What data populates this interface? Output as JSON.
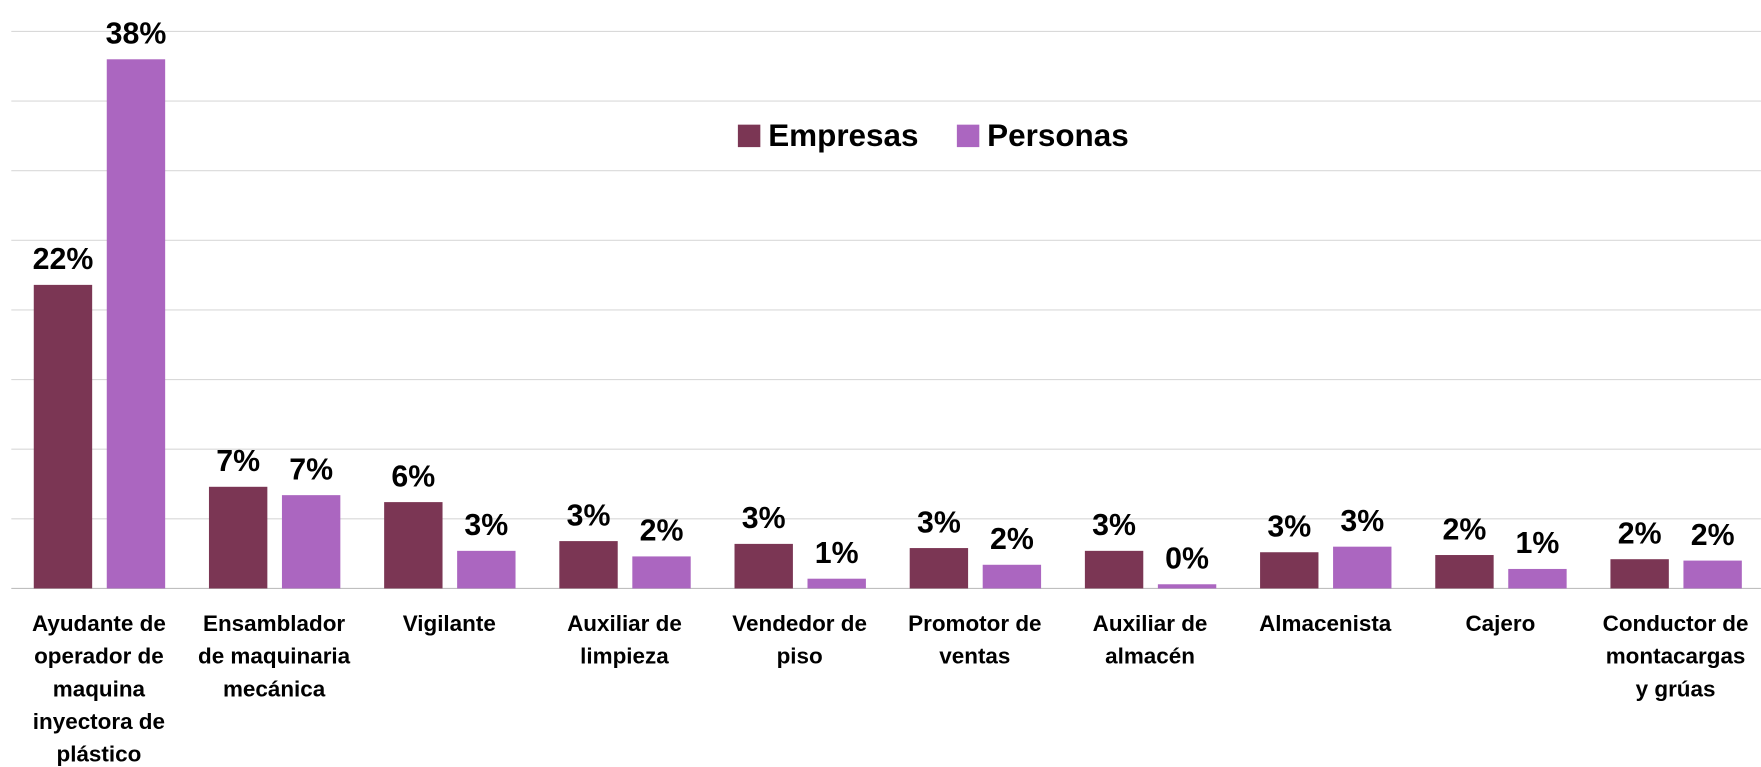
{
  "chart_data": {
    "type": "bar",
    "categories": [
      "Ayudante de operador de maquina inyectora de plástico",
      "Ensamblador de maquinaria mecánica",
      "Vigilante",
      "Auxiliar de limpieza",
      "Vendedor de piso",
      "Promotor de ventas",
      "Auxiliar de almacén",
      "Almacenista",
      "Cajero",
      "Conductor de montacargas y grúas"
    ],
    "series": [
      {
        "name": "Empresas",
        "color": "#7b3654",
        "values": [
          21.8,
          7.3,
          6.2,
          3.4,
          3.2,
          2.9,
          2.7,
          2.6,
          2.4,
          2.1
        ],
        "value_labels": [
          "22%",
          "7%",
          "6%",
          "3%",
          "3%",
          "3%",
          "3%",
          "3%",
          "2%",
          "2%"
        ]
      },
      {
        "name": "Personas",
        "color": "#ab66c0",
        "values": [
          38.0,
          6.7,
          2.7,
          2.3,
          0.7,
          1.7,
          0.3,
          3.0,
          1.4,
          2.0
        ],
        "value_labels": [
          "38%",
          "7%",
          "3%",
          "2%",
          "1%",
          "2%",
          "0%",
          "3%",
          "1%",
          "2%"
        ]
      }
    ],
    "ylim": [
      0,
      40
    ],
    "yticks": [
      0,
      5,
      10,
      15,
      20,
      25,
      30,
      35,
      40
    ],
    "show_ytick_labels": false,
    "grid": true,
    "legend": "top"
  }
}
